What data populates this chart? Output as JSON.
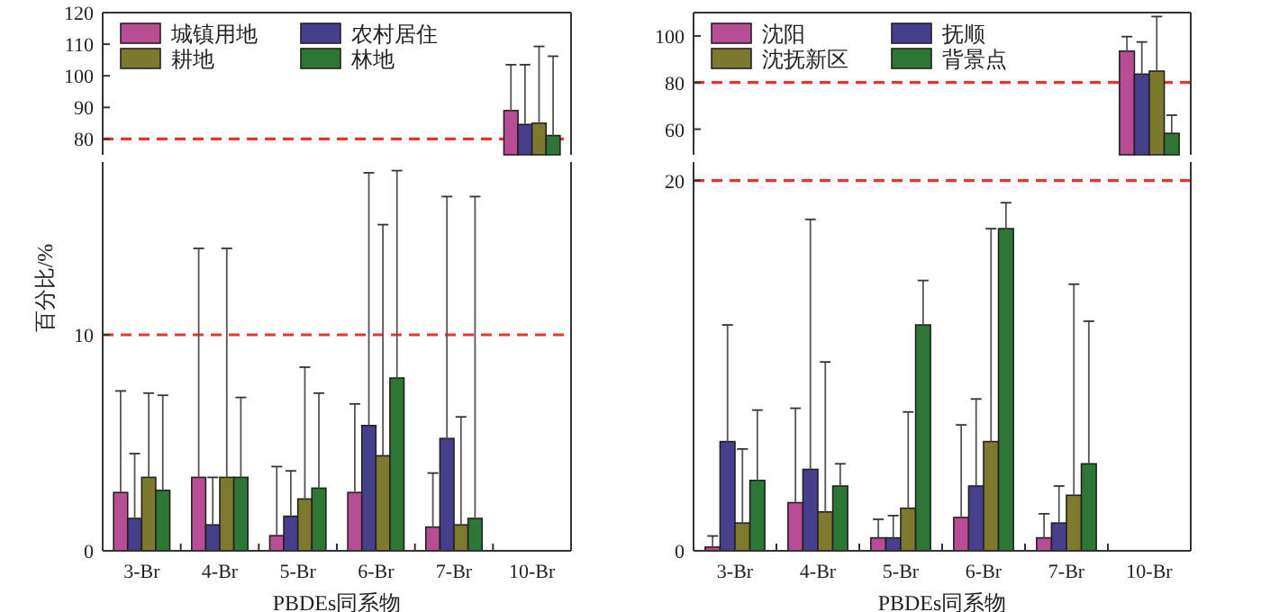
{
  "chart_data": [
    {
      "type": "bar",
      "categories": [
        null,
        null,
        null,
        null,
        null,
        null
      ],
      "ylim": [
        75,
        120
      ],
      "yticks": [
        80,
        90,
        100,
        110,
        120
      ],
      "tick_labels": "y",
      "legend": "top left",
      "grid": false,
      "series": [
        {
          "name": "城镇用地",
          "color": "#b84d96",
          "values": [
            null,
            null,
            null,
            null,
            null,
            89.0
          ],
          "errors": [
            null,
            null,
            null,
            null,
            null,
            [
              89.0,
              103.5
            ]
          ]
        },
        {
          "name": "农村居住",
          "color": "#453f8c",
          "values": [
            null,
            null,
            null,
            null,
            null,
            84.6
          ],
          "errors": [
            null,
            null,
            null,
            null,
            null,
            [
              84.6,
              103.5
            ]
          ]
        },
        {
          "name": "耕地",
          "color": "#7d7a30",
          "values": [
            null,
            null,
            null,
            null,
            null,
            85.0
          ],
          "errors": [
            null,
            null,
            null,
            null,
            null,
            [
              85.0,
              109.3
            ]
          ]
        },
        {
          "name": "林地",
          "color": "#2e7636",
          "values": [
            null,
            null,
            null,
            null,
            null,
            81.1
          ],
          "errors": [
            null,
            null,
            null,
            null,
            null,
            [
              81.1,
              106.2
            ]
          ]
        }
      ],
      "ref_lines": [
        {
          "axis": "y",
          "value": 80,
          "color": "#e8342a",
          "line_style": "dashed"
        }
      ]
    },
    {
      "type": "bar",
      "categories": [
        null,
        null,
        null,
        null,
        null,
        null
      ],
      "ylim": [
        49,
        110
      ],
      "yticks": [
        60,
        80,
        100
      ],
      "tick_labels": "y",
      "legend": "top left",
      "grid": false,
      "series": [
        {
          "name": "沈阳",
          "color": "#b84d96",
          "values": [
            null,
            null,
            null,
            null,
            null,
            93.5
          ],
          "errors": [
            null,
            null,
            null,
            null,
            null,
            [
              93.5,
              99.7
            ]
          ]
        },
        {
          "name": "抚顺",
          "color": "#453f8c",
          "values": [
            null,
            null,
            null,
            null,
            null,
            83.6
          ],
          "errors": [
            null,
            null,
            null,
            null,
            null,
            [
              83.6,
              97.4
            ]
          ]
        },
        {
          "name": "沈抚新区",
          "color": "#7d7a30",
          "values": [
            null,
            null,
            null,
            null,
            null,
            84.9
          ],
          "errors": [
            null,
            null,
            null,
            null,
            null,
            [
              84.9,
              108.3
            ]
          ]
        },
        {
          "name": "背景点",
          "color": "#2e7636",
          "values": [
            null,
            null,
            null,
            null,
            null,
            58.2
          ],
          "errors": [
            null,
            null,
            null,
            null,
            null,
            [
              58.2,
              66.0
            ]
          ]
        }
      ],
      "ref_lines": [
        {
          "axis": "y",
          "value": 80,
          "color": "#e8342a",
          "line_style": "dashed"
        }
      ]
    },
    {
      "type": "bar",
      "categories": [
        "3-Br",
        "4-Br",
        "5-Br",
        "6-Br",
        "7-Br",
        "10-Br"
      ],
      "ylim": [
        0,
        18
      ],
      "yticks": [
        0,
        10
      ],
      "xlabel": "PBDEs同系物",
      "ylabel": "百分比/%",
      "grid": false,
      "series": [
        {
          "color": "#b84d96",
          "values": [
            2.7,
            3.4,
            0.7,
            2.7,
            1.1,
            null
          ],
          "errors": [
            [
              2.7,
              7.4
            ],
            [
              3.4,
              14.0
            ],
            [
              0.7,
              3.9
            ],
            [
              2.7,
              6.8
            ],
            [
              1.1,
              3.6
            ],
            null
          ]
        },
        {
          "color": "#453f8c",
          "values": [
            1.5,
            1.2,
            1.6,
            5.8,
            5.2,
            null
          ],
          "errors": [
            [
              1.5,
              4.5
            ],
            [
              1.2,
              3.4
            ],
            [
              1.6,
              3.7
            ],
            [
              5.8,
              17.5
            ],
            [
              5.2,
              16.4
            ],
            null
          ]
        },
        {
          "color": "#7d7a30",
          "values": [
            3.4,
            3.4,
            2.4,
            4.4,
            1.2,
            null
          ],
          "errors": [
            [
              3.4,
              7.3
            ],
            [
              3.4,
              14.0
            ],
            [
              2.4,
              8.5
            ],
            [
              4.4,
              15.1
            ],
            [
              1.2,
              6.2
            ],
            null
          ]
        },
        {
          "color": "#2e7636",
          "values": [
            2.8,
            3.4,
            2.9,
            8.0,
            1.5,
            null
          ],
          "errors": [
            [
              2.8,
              7.2
            ],
            [
              3.4,
              7.1
            ],
            [
              2.9,
              7.3
            ],
            [
              8.0,
              17.6
            ],
            [
              1.5,
              16.4
            ],
            null
          ]
        }
      ],
      "ref_lines": [
        {
          "axis": "y",
          "value": 10,
          "color": "#e8342a",
          "line_style": "dashed"
        }
      ]
    },
    {
      "type": "bar",
      "categories": [
        "3-Br",
        "4-Br",
        "5-Br",
        "6-Br",
        "7-Br",
        "10-Br"
      ],
      "ylim": [
        0,
        21
      ],
      "yticks": [
        0,
        20
      ],
      "xlabel": "PBDEs同系物",
      "grid": false,
      "series": [
        {
          "color": "#b84d96",
          "values": [
            0.2,
            2.6,
            0.7,
            1.8,
            0.7,
            null
          ],
          "errors": [
            [
              0.2,
              0.8
            ],
            [
              2.6,
              7.7
            ],
            [
              0.7,
              1.7
            ],
            [
              1.8,
              6.8
            ],
            [
              0.7,
              2.0
            ],
            null
          ]
        },
        {
          "color": "#453f8c",
          "values": [
            5.9,
            4.4,
            0.7,
            3.5,
            1.5,
            null
          ],
          "errors": [
            [
              5.9,
              12.2
            ],
            [
              4.4,
              17.9
            ],
            [
              0.7,
              1.9
            ],
            [
              3.5,
              8.2
            ],
            [
              1.5,
              3.5
            ],
            null
          ]
        },
        {
          "color": "#7d7a30",
          "values": [
            1.5,
            2.1,
            2.3,
            5.9,
            3.0,
            null
          ],
          "errors": [
            [
              1.5,
              5.5
            ],
            [
              2.1,
              10.2
            ],
            [
              2.3,
              7.5
            ],
            [
              5.9,
              17.4
            ],
            [
              3.0,
              14.4
            ],
            null
          ]
        },
        {
          "color": "#2e7636",
          "values": [
            3.8,
            3.5,
            12.2,
            17.4,
            4.7,
            null
          ],
          "errors": [
            [
              3.8,
              7.6
            ],
            [
              3.5,
              4.7
            ],
            [
              12.2,
              14.6
            ],
            [
              17.4,
              18.8
            ],
            [
              4.7,
              12.4
            ],
            null
          ]
        }
      ],
      "ref_lines": [
        {
          "axis": "y",
          "value": 20,
          "color": "#e8342a",
          "line_style": "dashed"
        }
      ]
    }
  ]
}
